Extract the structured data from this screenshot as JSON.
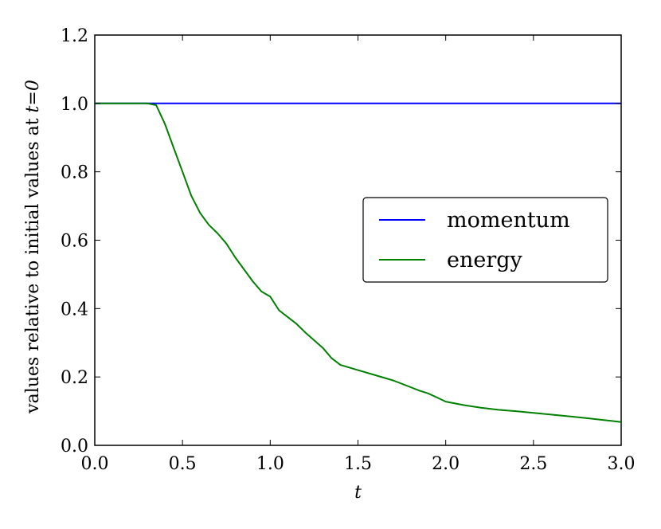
{
  "chart_data": {
    "type": "line",
    "xlabel": "t",
    "ylabel_text": "values relative to initial values at ",
    "ylabel_math": "t=0",
    "xlim": [
      0.0,
      3.0
    ],
    "ylim": [
      0.0,
      1.2
    ],
    "xticks": [
      "0.0",
      "0.5",
      "1.0",
      "1.5",
      "2.0",
      "2.5",
      "3.0"
    ],
    "yticks": [
      "0.0",
      "0.2",
      "0.4",
      "0.6",
      "0.8",
      "1.0",
      "1.2"
    ],
    "grid": false,
    "legend_position": "center-right",
    "series": [
      {
        "name": "momentum",
        "color": "#0000ff",
        "x": [
          0.0,
          3.0
        ],
        "y": [
          1.0,
          1.0
        ]
      },
      {
        "name": "energy",
        "color": "#008000",
        "x": [
          0.0,
          0.3,
          0.35,
          0.4,
          0.45,
          0.5,
          0.55,
          0.6,
          0.65,
          0.7,
          0.75,
          0.8,
          0.85,
          0.9,
          0.95,
          1.0,
          1.05,
          1.1,
          1.15,
          1.2,
          1.3,
          1.35,
          1.4,
          1.5,
          1.6,
          1.7,
          1.8,
          1.85,
          1.9,
          1.95,
          2.0,
          2.1,
          2.2,
          2.3,
          2.4,
          2.5,
          2.6,
          2.7,
          2.8,
          2.9,
          3.0
        ],
        "y": [
          1.0,
          1.0,
          0.995,
          0.94,
          0.87,
          0.8,
          0.73,
          0.68,
          0.645,
          0.62,
          0.59,
          0.55,
          0.515,
          0.48,
          0.45,
          0.435,
          0.395,
          0.375,
          0.355,
          0.33,
          0.285,
          0.255,
          0.235,
          0.22,
          0.205,
          0.19,
          0.17,
          0.16,
          0.152,
          0.14,
          0.128,
          0.118,
          0.11,
          0.104,
          0.1,
          0.095,
          0.09,
          0.085,
          0.08,
          0.074,
          0.068
        ]
      }
    ]
  }
}
